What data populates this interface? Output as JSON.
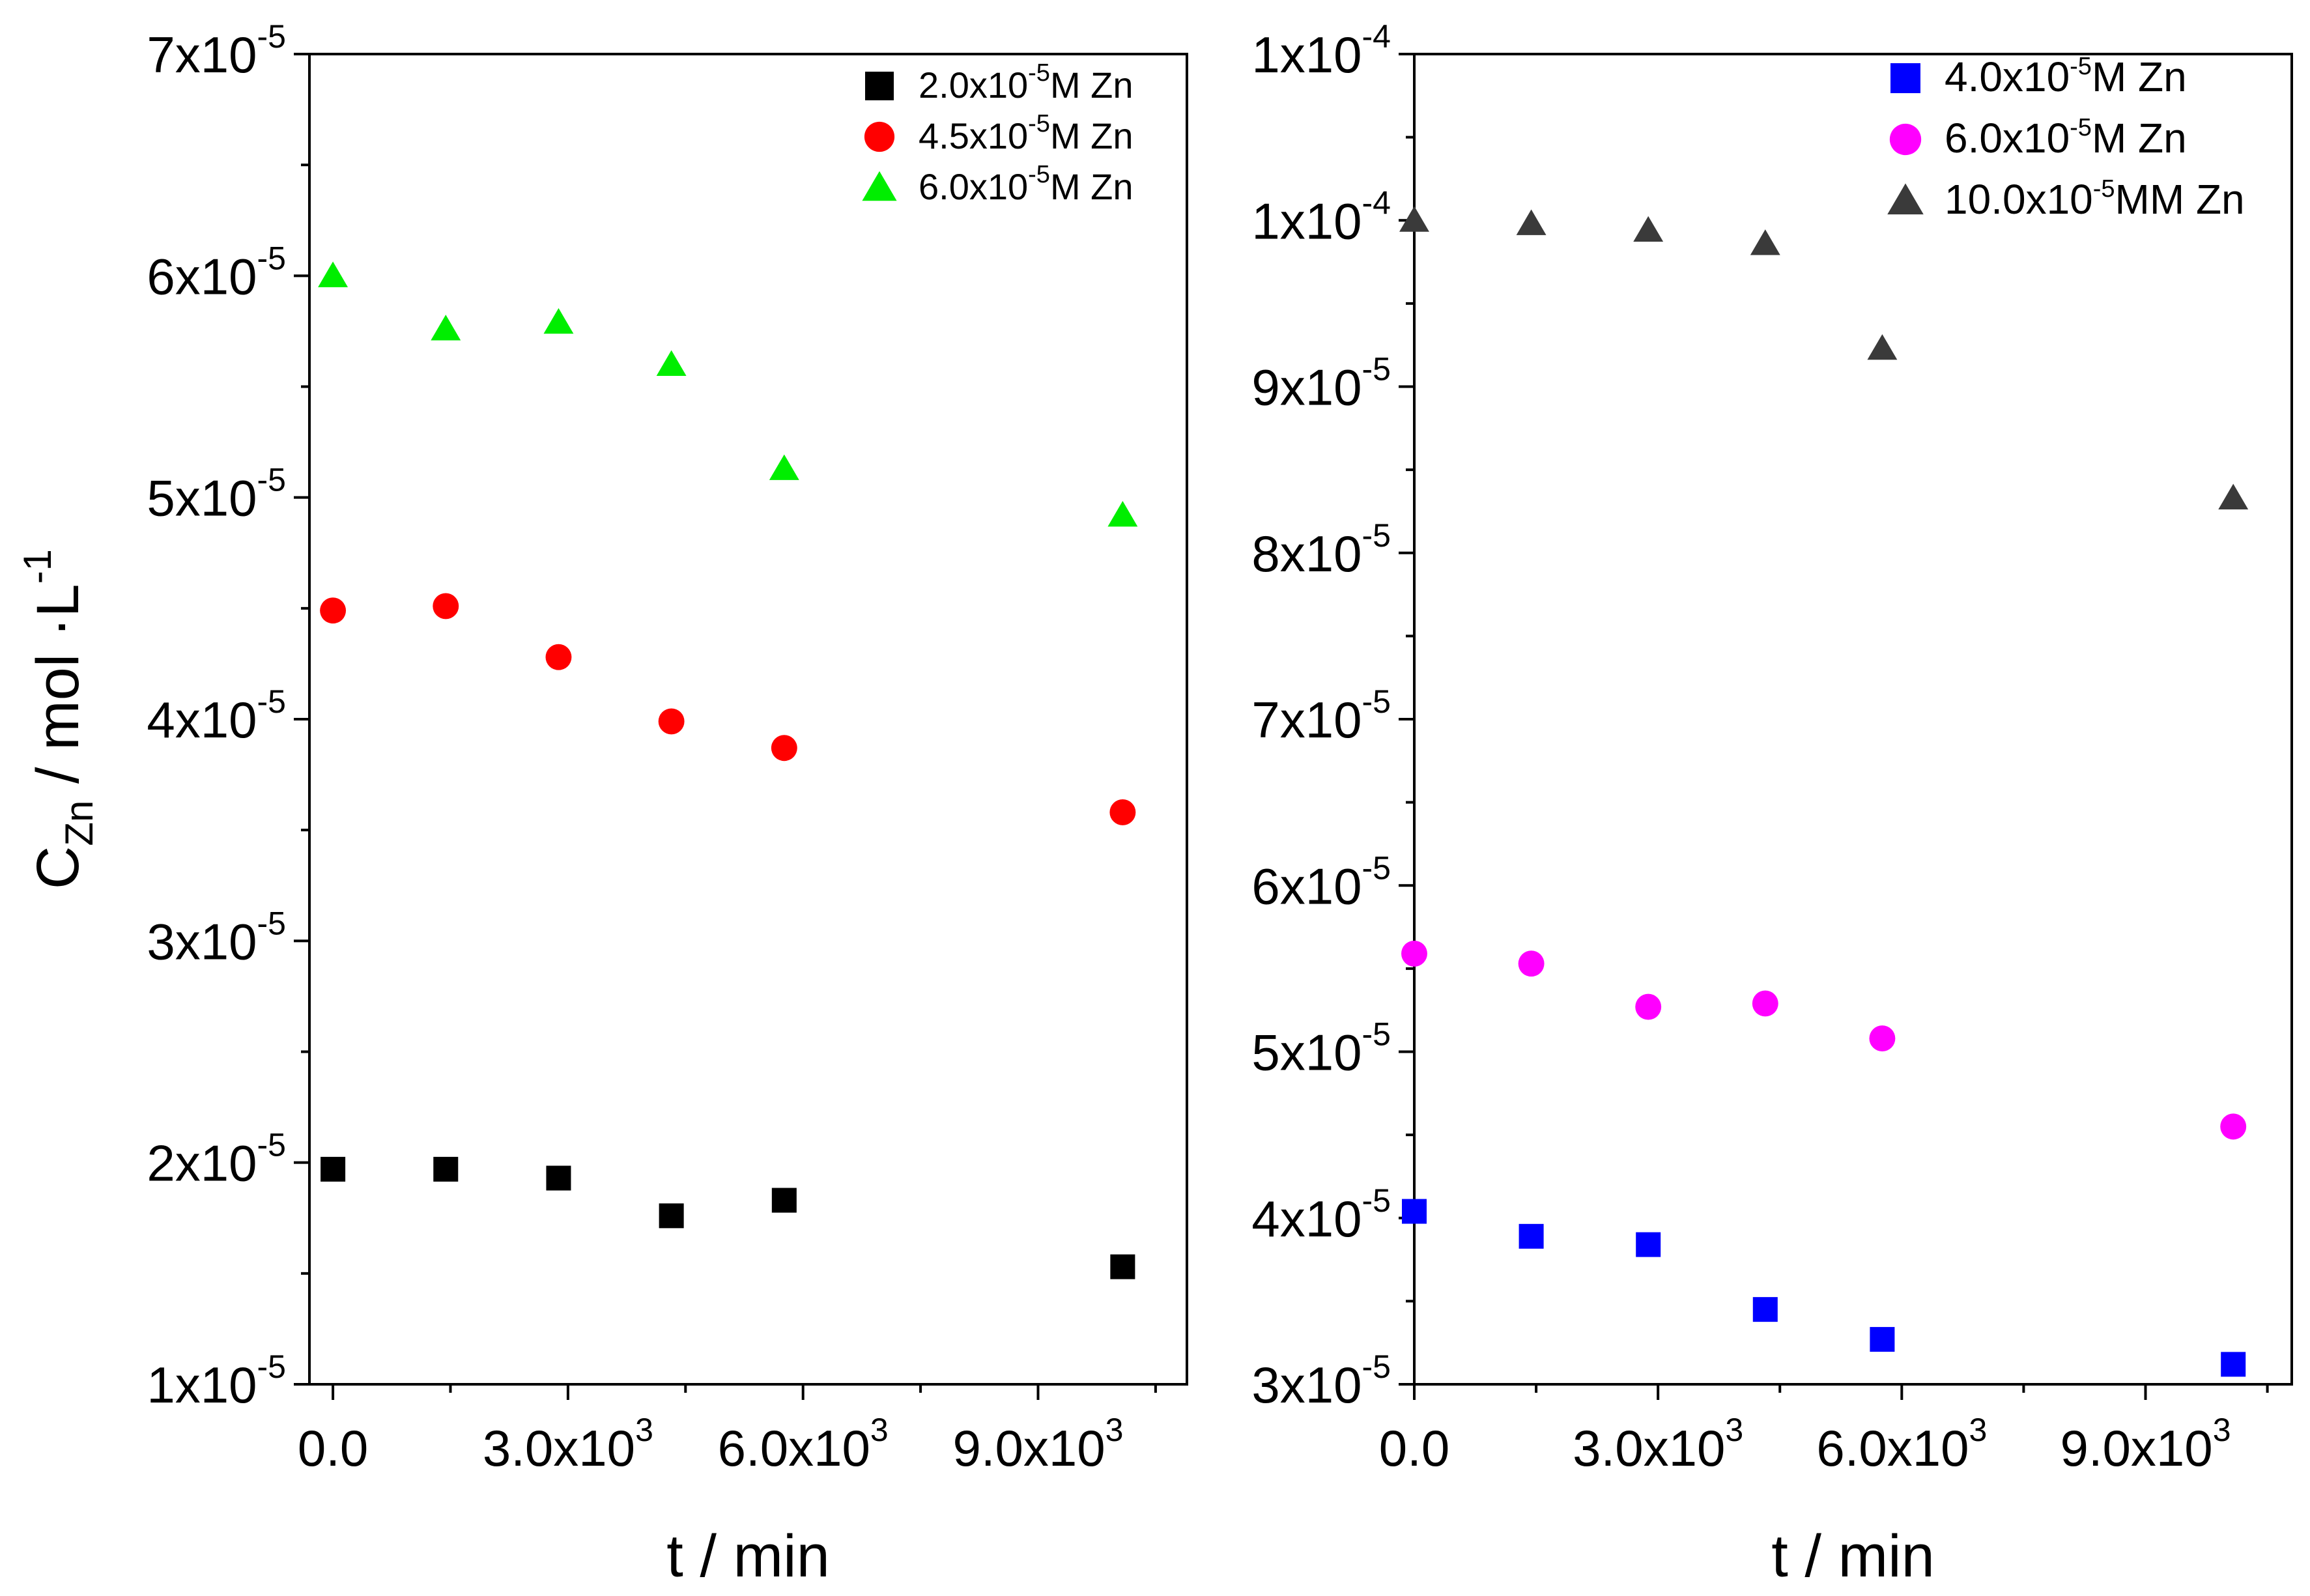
{
  "chart_data": [
    {
      "type": "scatter",
      "xlabel": "t / min",
      "ylabel": {
        "base": "C",
        "sub": "Zn",
        "rest": " / mol ·L",
        "sup": "-1"
      },
      "xlim": [
        -300,
        10900
      ],
      "ylim": [
        1e-05,
        7e-05
      ],
      "xticks": [
        {
          "value": 0,
          "label": "0.0",
          "exp": ""
        },
        {
          "value": 3000,
          "label": "3.0x10",
          "exp": "3"
        },
        {
          "value": 6000,
          "label": "6.0x10",
          "exp": "3"
        },
        {
          "value": 9000,
          "label": "9.0x10",
          "exp": "3"
        }
      ],
      "yticks": [
        {
          "value": 1e-05,
          "label": "1x10",
          "exp": "-5"
        },
        {
          "value": 2e-05,
          "label": "2x10",
          "exp": "-5"
        },
        {
          "value": 3e-05,
          "label": "3x10",
          "exp": "-5"
        },
        {
          "value": 4e-05,
          "label": "4x10",
          "exp": "-5"
        },
        {
          "value": 5e-05,
          "label": "5x10",
          "exp": "-5"
        },
        {
          "value": 6e-05,
          "label": "6x10",
          "exp": "-5"
        },
        {
          "value": 7e-05,
          "label": "7x10",
          "exp": "-5"
        }
      ],
      "legend_position": "top-right",
      "series": [
        {
          "name": "2.0x10-5M Zn",
          "label": "2.0x10",
          "exp": "-5",
          "suffix": "M Zn",
          "marker": "square",
          "color": "#000000",
          "x": [
            0,
            1440,
            2880,
            4320,
            5760,
            10080
          ],
          "y": [
            1.97e-05,
            1.97e-05,
            1.93e-05,
            1.76e-05,
            1.83e-05,
            1.53e-05
          ]
        },
        {
          "name": "4.5x10-5M Zn",
          "label": "4.5x10",
          "exp": "-5",
          "suffix": "M Zn",
          "marker": "circle",
          "color": "#ff0000",
          "x": [
            0,
            1440,
            2880,
            4320,
            5760,
            10080
          ],
          "y": [
            4.49e-05,
            4.51e-05,
            4.28e-05,
            3.99e-05,
            3.87e-05,
            3.58e-05
          ]
        },
        {
          "name": "6.0x10-5M Zn",
          "label": "6.0x10",
          "exp": "-5",
          "suffix": "M Zn",
          "marker": "triangle",
          "color": "#00ee00",
          "x": [
            0,
            1440,
            2880,
            4320,
            5760,
            10080
          ],
          "y": [
            6e-05,
            5.76e-05,
            5.79e-05,
            5.6e-05,
            5.13e-05,
            4.92e-05
          ]
        }
      ]
    },
    {
      "type": "scatter",
      "xlabel": "t / min",
      "xlim": [
        0,
        10800
      ],
      "ylim": [
        3e-05,
        0.00011
      ],
      "xticks": [
        {
          "value": 0,
          "label": "0.0",
          "exp": ""
        },
        {
          "value": 3000,
          "label": "3.0x10",
          "exp": "3"
        },
        {
          "value": 6000,
          "label": "6.0x10",
          "exp": "3"
        },
        {
          "value": 9000,
          "label": "9.0x10",
          "exp": "3"
        }
      ],
      "yticks": [
        {
          "value": 3e-05,
          "label": "3x10",
          "exp": "-5"
        },
        {
          "value": 4e-05,
          "label": "4x10",
          "exp": "-5"
        },
        {
          "value": 5e-05,
          "label": "5x10",
          "exp": "-5"
        },
        {
          "value": 6e-05,
          "label": "6x10",
          "exp": "-5"
        },
        {
          "value": 7e-05,
          "label": "7x10",
          "exp": "-5"
        },
        {
          "value": 8e-05,
          "label": "8x10",
          "exp": "-5"
        },
        {
          "value": 9e-05,
          "label": "9x10",
          "exp": "-5"
        },
        {
          "value": 0.0001,
          "label": "1x10",
          "exp": "-4"
        },
        {
          "value": 0.00011,
          "label": "1x10",
          "exp": "-4"
        }
      ],
      "legend_position": "top-right",
      "series": [
        {
          "name": "4.0x10-5M Zn",
          "label": "4.0x10",
          "exp": "-5",
          "suffix": "M Zn",
          "marker": "square",
          "color": "#0000ff",
          "x": [
            0,
            1440,
            2880,
            4320,
            5760,
            10080
          ],
          "y": [
            4.04e-05,
            3.89e-05,
            3.84e-05,
            3.45e-05,
            3.27e-05,
            3.12e-05
          ]
        },
        {
          "name": "6.0x10-5M Zn",
          "label": "6.0x10",
          "exp": "-5",
          "suffix": "M Zn",
          "marker": "circle",
          "color": "#ff00ff",
          "x": [
            0,
            1440,
            2880,
            4320,
            5760,
            10080
          ],
          "y": [
            5.59e-05,
            5.53e-05,
            5.27e-05,
            5.29e-05,
            5.08e-05,
            4.55e-05
          ]
        },
        {
          "name": "10.0x10-5MM Zn",
          "label": "10.0x10",
          "exp": "-5",
          "suffix": "MM Zn",
          "marker": "triangle",
          "color": "#3a3a3a",
          "x": [
            0,
            1440,
            2880,
            4320,
            5760,
            10080
          ],
          "y": [
            0.0001,
            9.98e-05,
            9.94e-05,
            9.86e-05,
            9.23e-05,
            8.33e-05
          ]
        }
      ]
    }
  ]
}
